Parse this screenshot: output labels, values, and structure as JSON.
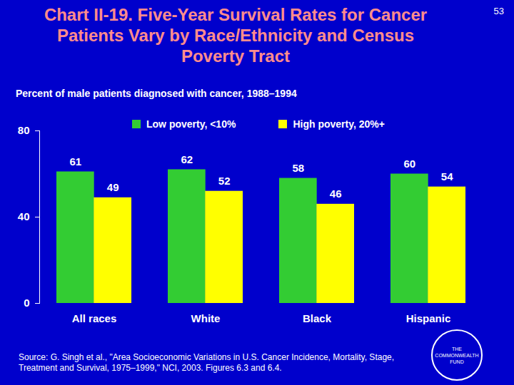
{
  "chart_data": {
    "type": "bar",
    "title": "Chart II-19. Five-Year Survival Rates for Cancer Patients Vary by Race/Ethnicity and Census Poverty Tract",
    "subtitle": "Percent of male patients diagnosed with cancer, 1988–1994",
    "categories": [
      "All races",
      "White",
      "Black",
      "Hispanic"
    ],
    "series": [
      {
        "name": "Low poverty, <10%",
        "color": "#33cc33",
        "values": [
          61,
          62,
          58,
          60
        ]
      },
      {
        "name": "High poverty, 20%+",
        "color": "#ffff00",
        "values": [
          49,
          52,
          46,
          54
        ]
      }
    ],
    "ylim": [
      0,
      80
    ],
    "yticks": [
      0,
      40,
      80
    ],
    "grid": false,
    "legend": "top",
    "data_labels": true,
    "source": "Source: G. Singh et al., \"Area Socioeconomic Variations in U.S. Cancer Incidence, Mortality, Stage, Treatment and Survival, 1975–1999,\" NCI, 2003. Figures 6.3 and 6.4.",
    "page_number": "53",
    "logo": "THE COMMONWEALTH FUND"
  }
}
